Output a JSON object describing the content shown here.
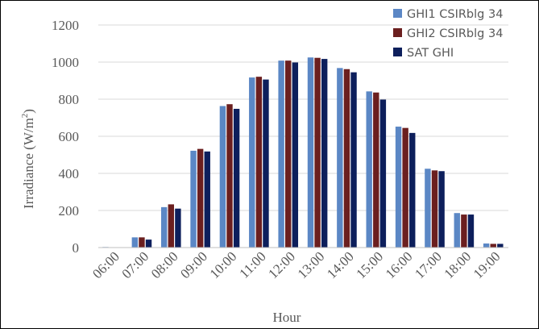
{
  "chart_data": {
    "type": "bar",
    "title": "",
    "xlabel": "Hour",
    "ylabel": "Irradiance (W/m",
    "ylabel_superscript": "2",
    "ylabel_suffix": ")",
    "ylim": [
      0,
      1200
    ],
    "yticks": [
      0,
      200,
      400,
      600,
      800,
      1000,
      1200
    ],
    "grid": "horizontal",
    "legend_position": "top-right",
    "categories": [
      "06:00",
      "07:00",
      "08:00",
      "09:00",
      "10:00",
      "11:00",
      "12:00",
      "13:00",
      "14:00",
      "15:00",
      "16:00",
      "17:00",
      "18:00",
      "19:00"
    ],
    "series": [
      {
        "name": "GHI1 CSIRblg 34",
        "color": "#5b87c5",
        "values": [
          3,
          55,
          218,
          522,
          763,
          917,
          1008,
          1025,
          968,
          842,
          652,
          425,
          186,
          22
        ]
      },
      {
        "name": "GHI2 CSIRblg 34",
        "color": "#6b1f1f",
        "values": [
          2,
          55,
          233,
          532,
          773,
          921,
          1008,
          1023,
          962,
          836,
          645,
          416,
          178,
          20
        ]
      },
      {
        "name": "SAT GHI",
        "color": "#0d1f5c",
        "values": [
          1,
          43,
          210,
          518,
          748,
          906,
          998,
          1017,
          945,
          798,
          618,
          412,
          178,
          20
        ]
      }
    ]
  }
}
